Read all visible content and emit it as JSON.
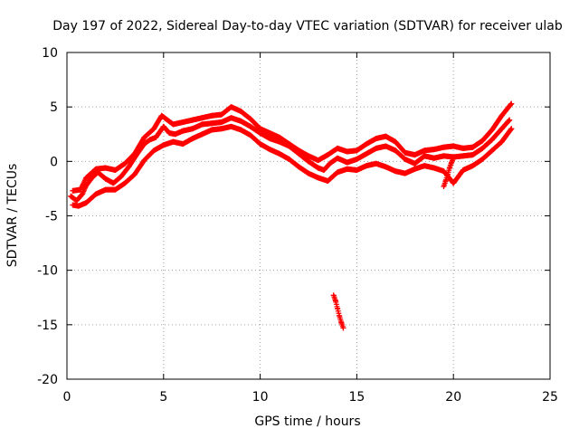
{
  "chart_data": {
    "type": "scatter",
    "title": "Day 197 of 2022, Sidereal Day-to-day VTEC variation (SDTVAR) for receiver ulab",
    "xlabel": "GPS time / hours",
    "ylabel": "SDTVAR / TECUs",
    "xlim": [
      0,
      25
    ],
    "ylim": [
      -20,
      10
    ],
    "xticks": [
      0,
      5,
      10,
      15,
      20,
      25
    ],
    "yticks": [
      -20,
      -15,
      -10,
      -5,
      0,
      5,
      10
    ],
    "grid": true,
    "marker": "+",
    "series": [
      {
        "name": "main-trace",
        "color": "#ff0000",
        "x": [
          0.2,
          0.5,
          0.8,
          1.0,
          1.3,
          1.6,
          2.0,
          2.4,
          2.8,
          3.2,
          3.6,
          4.0,
          4.3,
          4.6,
          5.0,
          5.3,
          5.6,
          6.0,
          6.5,
          7.0,
          7.5,
          8.0,
          8.5,
          9.0,
          9.5,
          10.0,
          10.5,
          11.0,
          11.5,
          12.0,
          12.5,
          13.0,
          13.3,
          13.6,
          14.0,
          14.5,
          15.0,
          15.5,
          16.0,
          16.5,
          17.0,
          17.5,
          18.0,
          18.5,
          19.0,
          19.5,
          20.0,
          20.5,
          21.0,
          21.5,
          22.0,
          22.5,
          22.9
        ],
        "y": [
          -3.2,
          -3.6,
          -3.0,
          -2.2,
          -1.5,
          -1.0,
          -1.6,
          -2.0,
          -1.4,
          -0.5,
          0.6,
          1.6,
          2.0,
          2.2,
          3.2,
          2.6,
          2.5,
          2.8,
          3.0,
          3.4,
          3.5,
          3.6,
          4.0,
          3.7,
          3.2,
          2.6,
          2.1,
          1.8,
          1.4,
          0.7,
          0.0,
          -0.6,
          -0.8,
          -0.2,
          0.3,
          -0.1,
          0.2,
          0.7,
          1.2,
          1.4,
          1.0,
          0.2,
          -0.2,
          0.5,
          0.3,
          0.5,
          0.4,
          0.5,
          0.6,
          1.2,
          2.0,
          3.0,
          3.8
        ]
      },
      {
        "name": "band-upper",
        "color": "#ff0000",
        "x": [
          0.3,
          0.7,
          1.0,
          1.5,
          2.0,
          2.5,
          3.0,
          3.5,
          4.0,
          4.5,
          4.9,
          5.5,
          6.0,
          6.5,
          7.0,
          7.5,
          8.0,
          8.5,
          9.0,
          9.5,
          10.0,
          10.5,
          11.0,
          11.5,
          12.0,
          12.5,
          13.0,
          13.5,
          14.0,
          14.5,
          15.0,
          15.5,
          16.0,
          16.5,
          17.0,
          17.5,
          18.0,
          18.5,
          19.0,
          19.5,
          20.0,
          20.5,
          21.0,
          21.5,
          22.0,
          22.5,
          23.0
        ],
        "y": [
          -2.7,
          -2.6,
          -1.5,
          -0.7,
          -0.6,
          -0.8,
          -0.2,
          0.7,
          2.2,
          3.0,
          4.2,
          3.4,
          3.6,
          3.8,
          4.0,
          4.2,
          4.3,
          5.0,
          4.6,
          3.9,
          3.0,
          2.6,
          2.2,
          1.6,
          1.0,
          0.5,
          0.1,
          0.6,
          1.2,
          0.9,
          1.0,
          1.6,
          2.1,
          2.3,
          1.8,
          0.8,
          0.6,
          1.0,
          1.1,
          1.3,
          1.4,
          1.2,
          1.3,
          1.9,
          2.9,
          4.2,
          5.3
        ]
      },
      {
        "name": "band-lower",
        "color": "#ff0000",
        "x": [
          0.3,
          0.6,
          1.0,
          1.5,
          2.0,
          2.5,
          3.0,
          3.5,
          4.0,
          4.5,
          5.0,
          5.5,
          6.0,
          6.5,
          7.0,
          7.5,
          8.0,
          8.5,
          9.0,
          9.5,
          10.0,
          10.5,
          11.0,
          11.5,
          12.0,
          12.5,
          13.0,
          13.5,
          14.0,
          14.5,
          15.0,
          15.5,
          16.0,
          16.5,
          17.0,
          17.5,
          18.0,
          18.5,
          19.0,
          19.5,
          20.0,
          20.5,
          21.0,
          21.5,
          22.0,
          22.5,
          23.0
        ],
        "y": [
          -4.0,
          -4.1,
          -3.8,
          -3.0,
          -2.6,
          -2.6,
          -2.0,
          -1.2,
          0.1,
          1.0,
          1.5,
          1.8,
          1.6,
          2.1,
          2.5,
          2.9,
          3.0,
          3.2,
          2.9,
          2.4,
          1.6,
          1.1,
          0.7,
          0.2,
          -0.5,
          -1.1,
          -1.5,
          -1.8,
          -1.0,
          -0.7,
          -0.8,
          -0.4,
          -0.2,
          -0.5,
          -0.9,
          -1.1,
          -0.7,
          -0.4,
          -0.6,
          -0.9,
          -2.0,
          -0.8,
          -0.4,
          0.2,
          1.0,
          1.8,
          3.0
        ]
      },
      {
        "name": "outlier-segment",
        "color": "#ff0000",
        "x": [
          13.8,
          13.9,
          14.0,
          14.1,
          14.2,
          14.3
        ],
        "y": [
          -12.3,
          -12.8,
          -13.5,
          -14.2,
          -14.8,
          -15.3
        ]
      },
      {
        "name": "dip-segment",
        "color": "#ff0000",
        "x": [
          19.5,
          19.6,
          19.7,
          19.8,
          19.9,
          20.0
        ],
        "y": [
          -2.3,
          -1.8,
          -1.2,
          -0.6,
          -0.1,
          0.3
        ]
      }
    ]
  }
}
